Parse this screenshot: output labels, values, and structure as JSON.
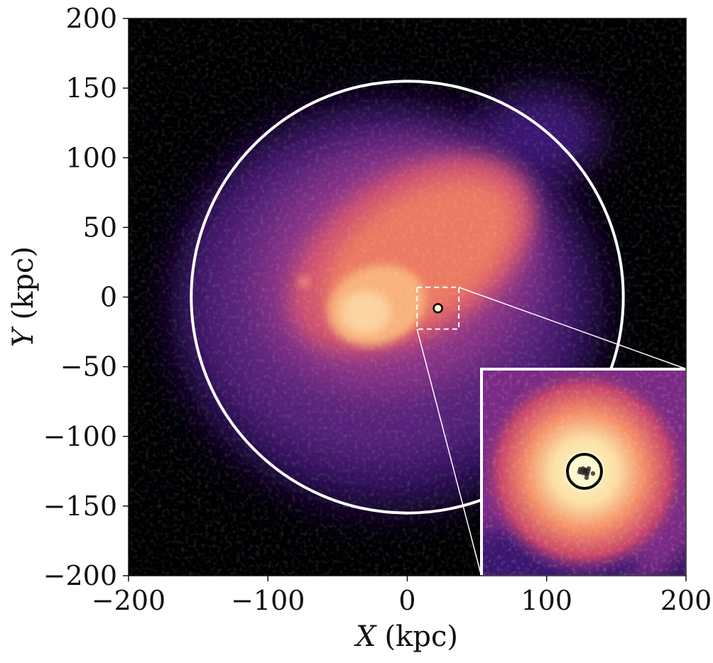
{
  "chart_data": {
    "type": "heatmap",
    "colormap": "magma",
    "xlabel_var": "X",
    "xlabel_unit": "(kpc)",
    "ylabel_var": "Y",
    "ylabel_unit": "(kpc)",
    "xlim": [
      -200,
      200
    ],
    "ylim": [
      -200,
      200
    ],
    "x_ticks": [
      -200,
      -100,
      0,
      100,
      200
    ],
    "y_ticks": [
      -200,
      -150,
      -100,
      -50,
      0,
      50,
      100,
      150,
      200
    ],
    "x_tick_labels": [
      "−200",
      "−100",
      "0",
      "100",
      "200"
    ],
    "y_tick_labels": [
      "−200",
      "−150",
      "−100",
      "−50",
      "0",
      "50",
      "100",
      "150",
      "200"
    ],
    "grid": false,
    "virial_circle": {
      "center": [
        0,
        0
      ],
      "radius": 155,
      "color": "#ffffff"
    },
    "marked_object": {
      "position": [
        22,
        -8
      ],
      "color": "#000000"
    },
    "zoom_box": {
      "x": [
        7,
        37
      ],
      "y": [
        -23,
        7
      ],
      "style": "dashed",
      "color": "#ffffff"
    },
    "inset": {
      "placement": "bottom-right",
      "x": [
        7,
        37
      ],
      "y": [
        -23,
        7
      ]
    }
  }
}
